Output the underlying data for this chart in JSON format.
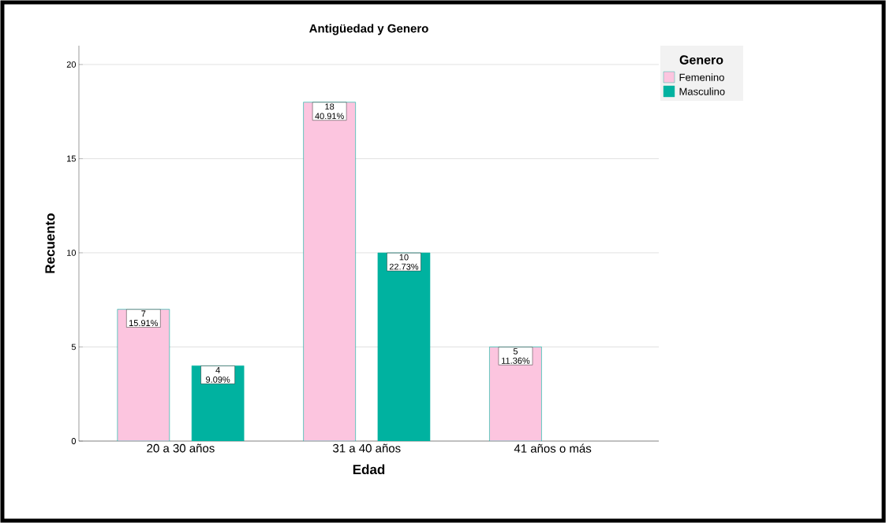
{
  "chart_data": {
    "type": "bar",
    "title": "Antigüedad  y Genero",
    "xlabel": "Edad",
    "ylabel": "Recuento",
    "legend_title": "Genero",
    "categories": [
      "20 a 30 años",
      "31 a 40 años",
      "41 años o más"
    ],
    "series": [
      {
        "name": "Femenino",
        "color": "#fcc5df",
        "values": [
          7,
          18,
          5
        ],
        "value_labels": [
          "7 15.91%",
          "18 40.91%",
          "5 11.36%"
        ]
      },
      {
        "name": "Masculino",
        "color": "#00b2a0",
        "values": [
          4,
          10,
          null
        ],
        "value_labels": [
          "4 9.09%",
          "10 22.73%",
          null
        ]
      }
    ],
    "ylim": [
      0,
      21
    ],
    "yticks": [
      0,
      5,
      10,
      15,
      20
    ],
    "grid": "y",
    "legend": "top right"
  }
}
